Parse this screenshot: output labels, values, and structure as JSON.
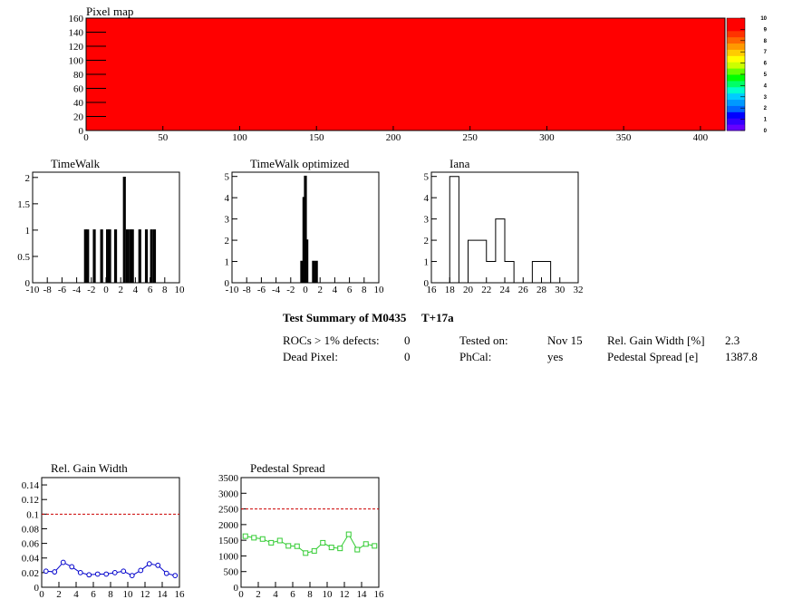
{
  "colors": {
    "pixelmap_fill": "#ff0000",
    "palette": [
      "#6600ff",
      "#3300ff",
      "#0000ff",
      "#0066ff",
      "#0099ff",
      "#00ccff",
      "#00ffcc",
      "#00ff66",
      "#00ff00",
      "#66ff00",
      "#ccff00",
      "#ffff00",
      "#ffcc00",
      "#ff9900",
      "#ff6600",
      "#ff3300",
      "#ff0000",
      "#ff0000"
    ],
    "gain_line": "#0000cc",
    "pedestal_line": "#33cc33",
    "threshold_line": "#cc0000"
  },
  "chart_data": [
    {
      "id": "pixel_map",
      "type": "heatmap",
      "title": "Pixel map",
      "xlim": [
        0,
        416
      ],
      "ylim": [
        0,
        160
      ],
      "xticks": [
        "0",
        "50",
        "100",
        "150",
        "200",
        "250",
        "300",
        "350",
        "400"
      ],
      "yticks": [
        "0",
        "20",
        "40",
        "60",
        "80",
        "100",
        "120",
        "140",
        "160"
      ],
      "zlim": [
        0,
        10
      ],
      "zticks": [
        "0",
        "1",
        "2",
        "3",
        "4",
        "5",
        "6",
        "7",
        "8",
        "9",
        "10"
      ],
      "value_everywhere": 10
    },
    {
      "id": "timewalk",
      "type": "bar",
      "title": "TimeWalk",
      "xlim": [
        -10,
        10
      ],
      "ylim": [
        0,
        2.1
      ],
      "xticks": [
        "-10",
        "-8",
        "-6",
        "-4",
        "-2",
        "0",
        "2",
        "4",
        "6",
        "8",
        "10"
      ],
      "yticks": [
        "0",
        "0.5",
        "1",
        "1.5",
        "2"
      ],
      "bin_width": 0.2,
      "bins": [
        {
          "x": -2.8,
          "y": 1
        },
        {
          "x": -2.5,
          "y": 1
        },
        {
          "x": -1.6,
          "y": 1
        },
        {
          "x": -0.6,
          "y": 1
        },
        {
          "x": 0.2,
          "y": 1
        },
        {
          "x": 0.5,
          "y": 1
        },
        {
          "x": 1.3,
          "y": 1
        },
        {
          "x": 2.5,
          "y": 2
        },
        {
          "x": 2.9,
          "y": 1
        },
        {
          "x": 3.3,
          "y": 1
        },
        {
          "x": 3.6,
          "y": 1
        },
        {
          "x": 4.6,
          "y": 1
        },
        {
          "x": 5.5,
          "y": 1
        },
        {
          "x": 6.2,
          "y": 1
        },
        {
          "x": 6.6,
          "y": 1
        }
      ]
    },
    {
      "id": "timewalk_optimized",
      "type": "bar",
      "title": "TimeWalk optimized",
      "xlim": [
        -10,
        10
      ],
      "ylim": [
        0,
        5.2
      ],
      "xticks": [
        "-10",
        "-8",
        "-6",
        "-4",
        "-2",
        "0",
        "2",
        "4",
        "6",
        "8",
        "10"
      ],
      "yticks": [
        "0",
        "1",
        "2",
        "3",
        "4",
        "5"
      ],
      "bin_width": 0.2,
      "bins": [
        {
          "x": -0.5,
          "y": 1
        },
        {
          "x": -0.2,
          "y": 4
        },
        {
          "x": 0.0,
          "y": 5
        },
        {
          "x": 0.2,
          "y": 2
        },
        {
          "x": 1.1,
          "y": 1
        },
        {
          "x": 1.5,
          "y": 1
        }
      ]
    },
    {
      "id": "iana",
      "type": "bar",
      "title": "Iana",
      "xlim": [
        16,
        32
      ],
      "ylim": [
        0,
        5.2
      ],
      "xticks": [
        "16",
        "18",
        "20",
        "22",
        "24",
        "26",
        "28",
        "30",
        "32"
      ],
      "yticks": [
        "0",
        "1",
        "2",
        "3",
        "4",
        "5"
      ],
      "steps": [
        {
          "x0": 18,
          "x1": 19,
          "y": 5
        },
        {
          "x0": 19,
          "x1": 20,
          "y": 0
        },
        {
          "x0": 20,
          "x1": 22,
          "y": 2
        },
        {
          "x0": 22,
          "x1": 23,
          "y": 1
        },
        {
          "x0": 23,
          "x1": 24,
          "y": 3
        },
        {
          "x0": 24,
          "x1": 25,
          "y": 1
        },
        {
          "x0": 25,
          "x1": 27,
          "y": 0
        },
        {
          "x0": 27,
          "x1": 29,
          "y": 1
        }
      ]
    },
    {
      "id": "rel_gain_width",
      "type": "line",
      "title": "Rel. Gain Width",
      "xlim": [
        0,
        16
      ],
      "ylim": [
        0,
        0.15
      ],
      "xticks": [
        "0",
        "2",
        "4",
        "6",
        "8",
        "10",
        "12",
        "14",
        "16"
      ],
      "yticks": [
        "0",
        "0.02",
        "0.04",
        "0.06",
        "0.08",
        "0.1",
        "0.12",
        "0.14"
      ],
      "threshold": 0.1,
      "x": [
        0,
        1,
        2,
        3,
        4,
        5,
        6,
        7,
        8,
        9,
        10,
        11,
        12,
        13,
        14,
        15
      ],
      "y": [
        0.022,
        0.021,
        0.034,
        0.028,
        0.02,
        0.017,
        0.018,
        0.018,
        0.02,
        0.022,
        0.016,
        0.023,
        0.032,
        0.03,
        0.019,
        0.016
      ]
    },
    {
      "id": "pedestal_spread",
      "type": "line",
      "title": "Pedestal Spread",
      "xlim": [
        0,
        16
      ],
      "ylim": [
        0,
        3500
      ],
      "xticks": [
        "0",
        "2",
        "4",
        "6",
        "8",
        "10",
        "12",
        "14",
        "16"
      ],
      "yticks": [
        "0",
        "500",
        "1000",
        "1500",
        "2000",
        "2500",
        "3000",
        "3500"
      ],
      "threshold": 2500,
      "x": [
        0,
        1,
        2,
        3,
        4,
        5,
        6,
        7,
        8,
        9,
        10,
        11,
        12,
        13,
        14,
        15
      ],
      "y": [
        1630,
        1580,
        1540,
        1420,
        1490,
        1320,
        1310,
        1090,
        1160,
        1420,
        1270,
        1240,
        1690,
        1200,
        1380,
        1320
      ]
    }
  ],
  "summary": {
    "title": "Test Summary of M0435",
    "temperature": "T+17a",
    "rocs_defects_label": "ROCs > 1% defects:",
    "rocs_defects_value": "0",
    "dead_pixel_label": "Dead Pixel:",
    "dead_pixel_value": "0",
    "tested_on_label": "Tested on:",
    "tested_on_value": "Nov 15",
    "phcal_label": "PhCal:",
    "phcal_value": "yes",
    "gain_width_label": "Rel. Gain Width [%]",
    "gain_width_value": "2.3",
    "pedestal_label": "Pedestal Spread [e]",
    "pedestal_value": "1387.8"
  }
}
